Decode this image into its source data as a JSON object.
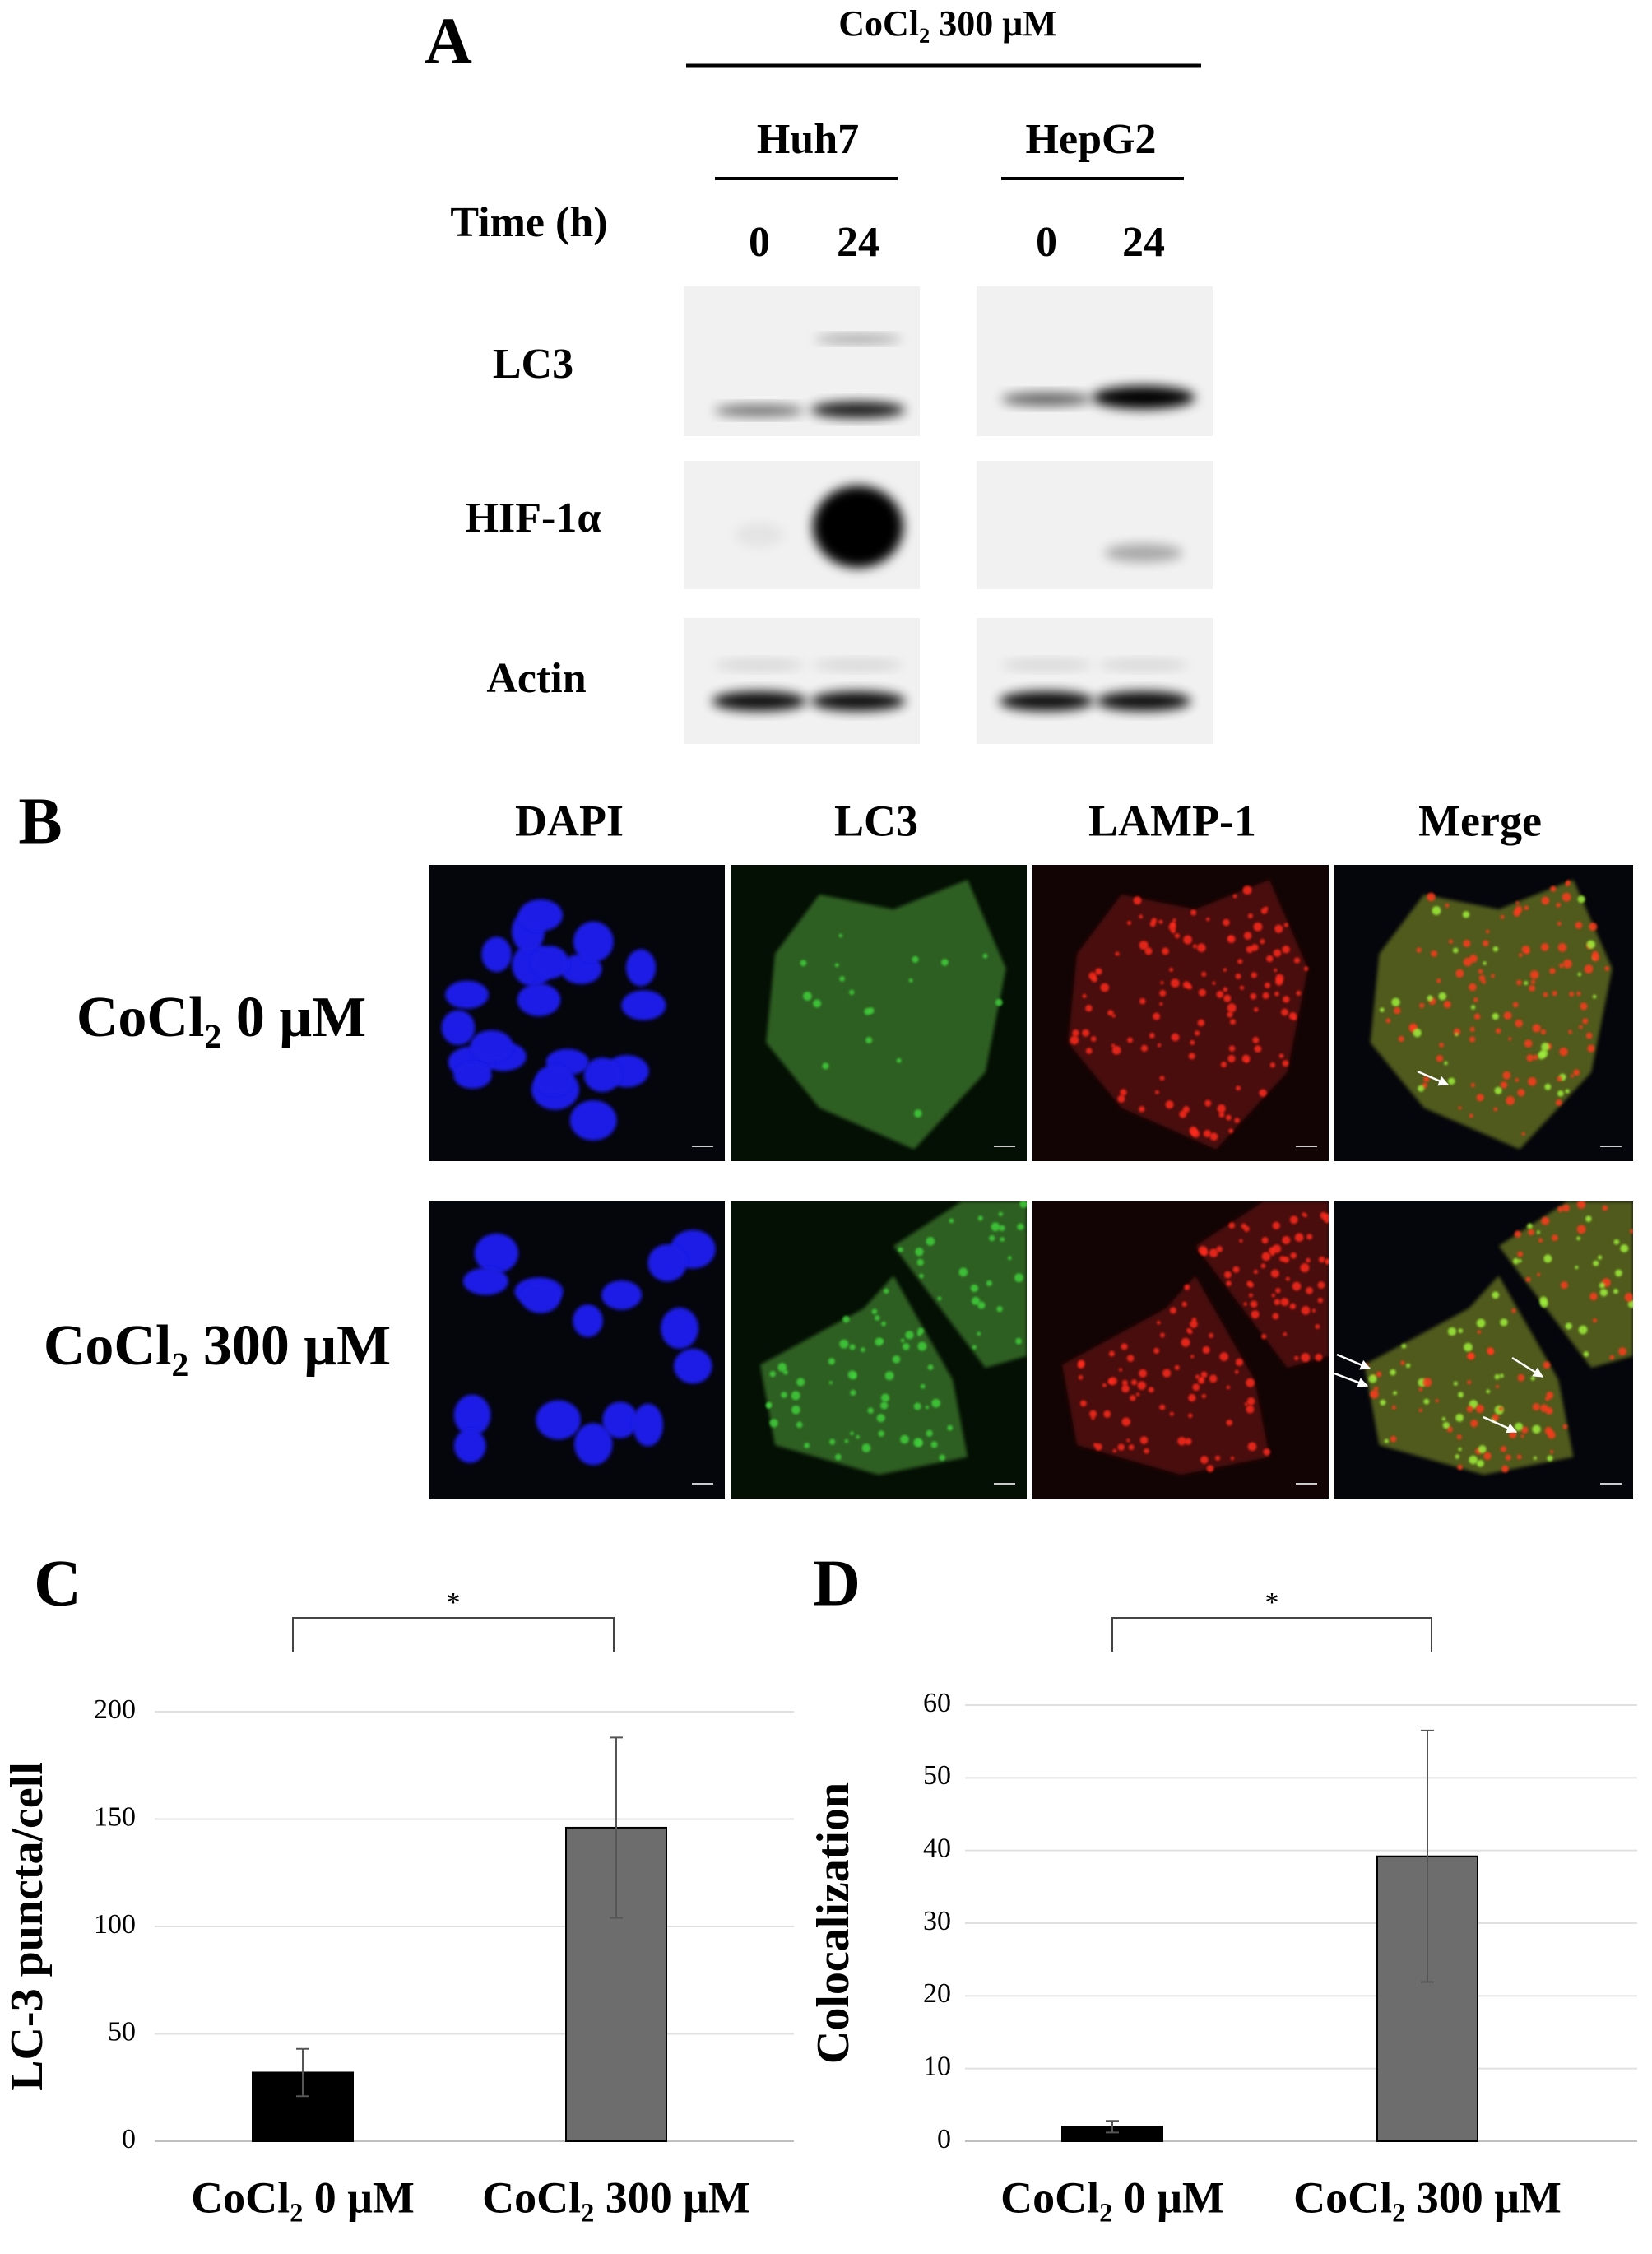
{
  "panel_a": {
    "label": "A",
    "treatment": "CoCl₂ 300 μM",
    "cell_lines": [
      "Huh7",
      "HepG2"
    ],
    "time_label": "Time (h)",
    "times": [
      "0",
      "24",
      "0",
      "24"
    ],
    "proteins": [
      "LC3",
      "HIF-1α",
      "Actin"
    ]
  },
  "panel_b": {
    "label": "B",
    "channels": [
      "DAPI",
      "LC3",
      "LAMP-1",
      "Merge"
    ],
    "conditions": [
      "CoCl₂ 0 μM",
      "CoCl₂ 300 μM"
    ]
  },
  "chart_data": [
    {
      "type": "bar",
      "label": "C",
      "ylabel": "LC-3 puncta/cell",
      "significance": "*",
      "categories": [
        "CoCl₂ 0 μM",
        "CoCl₂ 300 μM"
      ],
      "values": [
        32,
        146
      ],
      "errors": [
        11,
        42
      ],
      "colors": [
        "#000000",
        "#6d6d6d"
      ],
      "ylim": [
        0,
        200
      ],
      "yticks": [
        0,
        50,
        100,
        150,
        200
      ],
      "grid": true
    },
    {
      "type": "bar",
      "label": "D",
      "ylabel": "Colocalization",
      "significance": "*",
      "categories": [
        "CoCl₂ 0 μM",
        "CoCl₂ 300 μM"
      ],
      "values": [
        2,
        39.2
      ],
      "errors": [
        0.8,
        17.3
      ],
      "colors": [
        "#000000",
        "#6d6d6d"
      ],
      "ylim": [
        0,
        60
      ],
      "yticks": [
        0,
        10,
        20,
        30,
        40,
        50,
        60
      ],
      "grid": true
    }
  ]
}
